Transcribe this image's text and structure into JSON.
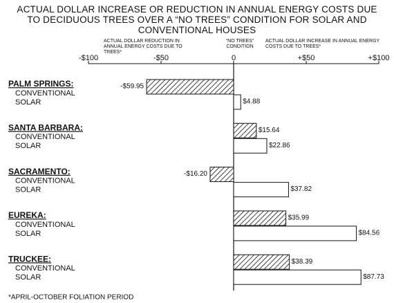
{
  "chart_data": {
    "type": "hbar-grouped",
    "title": "ACTUAL DOLLAR INCREASE OR REDUCTION IN ANNUAL ENERGY COSTS DUE TO DECIDUOUS TREES OVER A “NO TREES” CONDITION FOR SOLAR AND CONVENTIONAL HOUSES",
    "annotations": [
      "ACTUAL DOLLAR REDUCTION IN ANNUAL ENERGY COSTS DUE TO TREES*",
      "“NO TREES” CONDITION",
      "ACTUAL DOLLAR INCREASE IN ANNUAL ENERGY COSTS DUE TO TREES*"
    ],
    "footnote": "*APRIL-OCTOBER FOLIATION PERIOD",
    "categories": [
      "PALM SPRINGS:",
      "SANTA BARBARA:",
      "SACRAMENTO:",
      "EUREKA:",
      "TRUCKEE:"
    ],
    "series": [
      {
        "name": "CONVENTIONAL",
        "color": "#000000",
        "hatch": true,
        "values": [
          -59.95,
          15.64,
          -16.2,
          35.99,
          38.39
        ],
        "value_labels": [
          "-$59.95",
          "$15.64",
          "-$16.20",
          "$35.99",
          "$38.39"
        ]
      },
      {
        "name": "SOLAR",
        "color": "#ffffff",
        "hatch": false,
        "values": [
          4.88,
          22.86,
          37.82,
          84.56,
          87.73
        ],
        "value_labels": [
          "$4.88",
          "$22.86",
          "$37.82",
          "$84.56",
          "$87.73"
        ]
      }
    ],
    "xlim": [
      -100,
      100
    ],
    "xticks": [
      {
        "value": -100,
        "label": "-$100"
      },
      {
        "value": -50,
        "label": "-$50"
      },
      0,
      {
        "value": 50,
        "label": "+$50"
      },
      {
        "value": 100,
        "label": "+$100"
      }
    ]
  }
}
